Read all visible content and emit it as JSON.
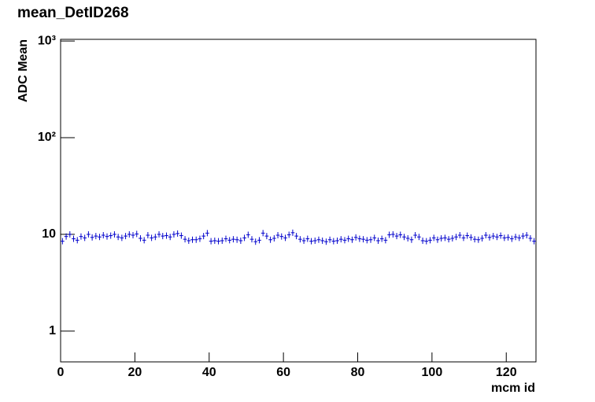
{
  "chart_data": {
    "type": "scatter",
    "title": "mean_DetID268",
    "x_label": "mcm id",
    "y_label": "ADC Mean",
    "log_y": true,
    "color": "#0000cc",
    "xlim": [
      0,
      128
    ],
    "xticks": [
      0,
      20,
      40,
      60,
      80,
      100,
      120
    ],
    "ylim": [
      0.48,
      1040
    ],
    "yticks": [
      1,
      10,
      {
        "value": 100,
        "label": "10²"
      },
      {
        "value": 1000,
        "label": "10³"
      }
    ],
    "x": [
      0.5,
      1.5,
      2.5,
      3.5,
      4.5,
      5.5,
      6.5,
      7.5,
      8.5,
      9.5,
      10.5,
      11.5,
      12.5,
      13.5,
      14.5,
      15.5,
      16.5,
      17.5,
      18.5,
      19.5,
      20.5,
      21.5,
      22.5,
      23.5,
      24.5,
      25.5,
      26.5,
      27.5,
      28.5,
      29.5,
      30.5,
      31.5,
      32.5,
      33.5,
      34.5,
      35.5,
      36.5,
      37.5,
      38.5,
      39.5,
      40.5,
      41.5,
      42.5,
      43.5,
      44.5,
      45.5,
      46.5,
      47.5,
      48.5,
      49.5,
      50.5,
      51.5,
      52.5,
      53.5,
      54.5,
      55.5,
      56.5,
      57.5,
      58.5,
      59.5,
      60.5,
      61.5,
      62.5,
      63.5,
      64.5,
      65.5,
      66.5,
      67.5,
      68.5,
      69.5,
      70.5,
      71.5,
      72.5,
      73.5,
      74.5,
      75.5,
      76.5,
      77.5,
      78.5,
      79.5,
      80.5,
      81.5,
      82.5,
      83.5,
      84.5,
      85.5,
      86.5,
      87.5,
      88.5,
      89.5,
      90.5,
      91.5,
      92.5,
      93.5,
      94.5,
      95.5,
      96.5,
      97.5,
      98.5,
      99.5,
      100.5,
      101.5,
      102.5,
      103.5,
      104.5,
      105.5,
      106.5,
      107.5,
      108.5,
      109.5,
      110.5,
      111.5,
      112.5,
      113.5,
      114.5,
      115.5,
      116.5,
      117.5,
      118.5,
      119.5,
      120.5,
      121.5,
      122.5,
      123.5,
      124.5,
      125.5,
      126.5,
      127.5
    ],
    "values": [
      8.5,
      9.5,
      10,
      9,
      8.7,
      9.5,
      9.2,
      10,
      9.3,
      9.6,
      9.4,
      9.8,
      9.5,
      9.7,
      10,
      9.4,
      9.2,
      9.6,
      10,
      9.8,
      10.1,
      9.1,
      8.7,
      9.8,
      9.2,
      9.4,
      10,
      9.6,
      9.7,
      9.4,
      10,
      10.2,
      9.7,
      8.9,
      8.6,
      8.8,
      8.8,
      9,
      9.6,
      10.3,
      8.5,
      8.6,
      8.5,
      8.6,
      9,
      8.7,
      8.9,
      8.8,
      8.6,
      9.2,
      9.9,
      8.9,
      8.4,
      8.7,
      10.3,
      9.6,
      8.8,
      9.1,
      9.8,
      9.5,
      9.2,
      9.9,
      10.4,
      9.6,
      8.9,
      8.6,
      9,
      8.5,
      8.6,
      8.8,
      8.6,
      8.4,
      8.8,
      8.5,
      8.6,
      8.9,
      8.7,
      9,
      8.8,
      9.3,
      9,
      8.9,
      8.7,
      8.8,
      9.2,
      8.6,
      9,
      8.7,
      9.9,
      10,
      9.6,
      9.9,
      9.4,
      9.1,
      8.8,
      9.8,
      9.4,
      8.6,
      8.5,
      8.7,
      9.2,
      8.8,
      9.1,
      9.2,
      8.9,
      9.1,
      9.4,
      9.8,
      9.2,
      9.7,
      9.3,
      8.9,
      8.8,
      9.1,
      9.8,
      9.3,
      9.6,
      9.4,
      9.7,
      9.2,
      9.3,
      9,
      9.4,
      9.2,
      9.6,
      9.8,
      9.1,
      8.5
    ]
  }
}
